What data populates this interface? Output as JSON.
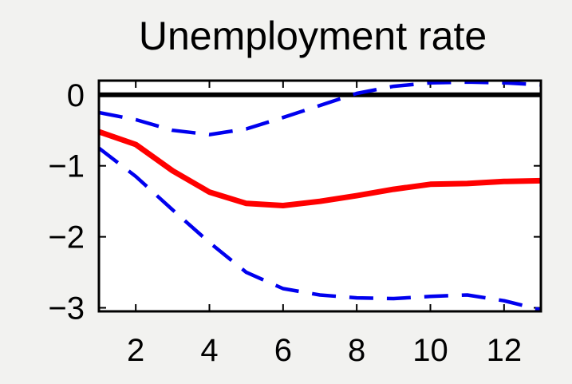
{
  "chart_data": {
    "type": "line",
    "title": "Unemployment rate",
    "xlabel": "",
    "ylabel": "",
    "xlim": [
      1,
      13
    ],
    "ylim": [
      -3.05,
      0.2
    ],
    "xticks": [
      2,
      4,
      6,
      8,
      10,
      12
    ],
    "xtick_labels": [
      "2",
      "4",
      "6",
      "8",
      "10",
      "12"
    ],
    "yticks": [
      0,
      -1,
      -2,
      -3
    ],
    "ytick_labels": [
      "0",
      "−1",
      "−2",
      "−3"
    ],
    "grid": false,
    "zero_line": 0,
    "series": [
      {
        "role": "point estimate",
        "style": "solid",
        "color": "#ff0000",
        "x": [
          1,
          2,
          3,
          4,
          5,
          6,
          7,
          8,
          9,
          10,
          11,
          12,
          13
        ],
        "y": [
          -0.52,
          -0.7,
          -1.07,
          -1.37,
          -1.53,
          -1.56,
          -1.5,
          -1.42,
          -1.33,
          -1.26,
          -1.25,
          -1.22,
          -1.21
        ]
      },
      {
        "role": "upper band",
        "style": "dashed",
        "color": "#0000ee",
        "x": [
          1,
          2,
          3,
          4,
          5,
          6,
          7,
          8,
          9,
          10,
          11,
          12,
          13
        ],
        "y": [
          -0.25,
          -0.35,
          -0.5,
          -0.56,
          -0.48,
          -0.32,
          -0.15,
          0.02,
          0.12,
          0.17,
          0.18,
          0.17,
          0.14
        ]
      },
      {
        "role": "lower band",
        "style": "dashed",
        "color": "#0000ee",
        "x": [
          1,
          2,
          3,
          4,
          5,
          6,
          7,
          8,
          9,
          10,
          11,
          12,
          13
        ],
        "y": [
          -0.75,
          -1.15,
          -1.62,
          -2.08,
          -2.5,
          -2.73,
          -2.82,
          -2.86,
          -2.87,
          -2.84,
          -2.82,
          -2.9,
          -3.03
        ]
      }
    ]
  }
}
